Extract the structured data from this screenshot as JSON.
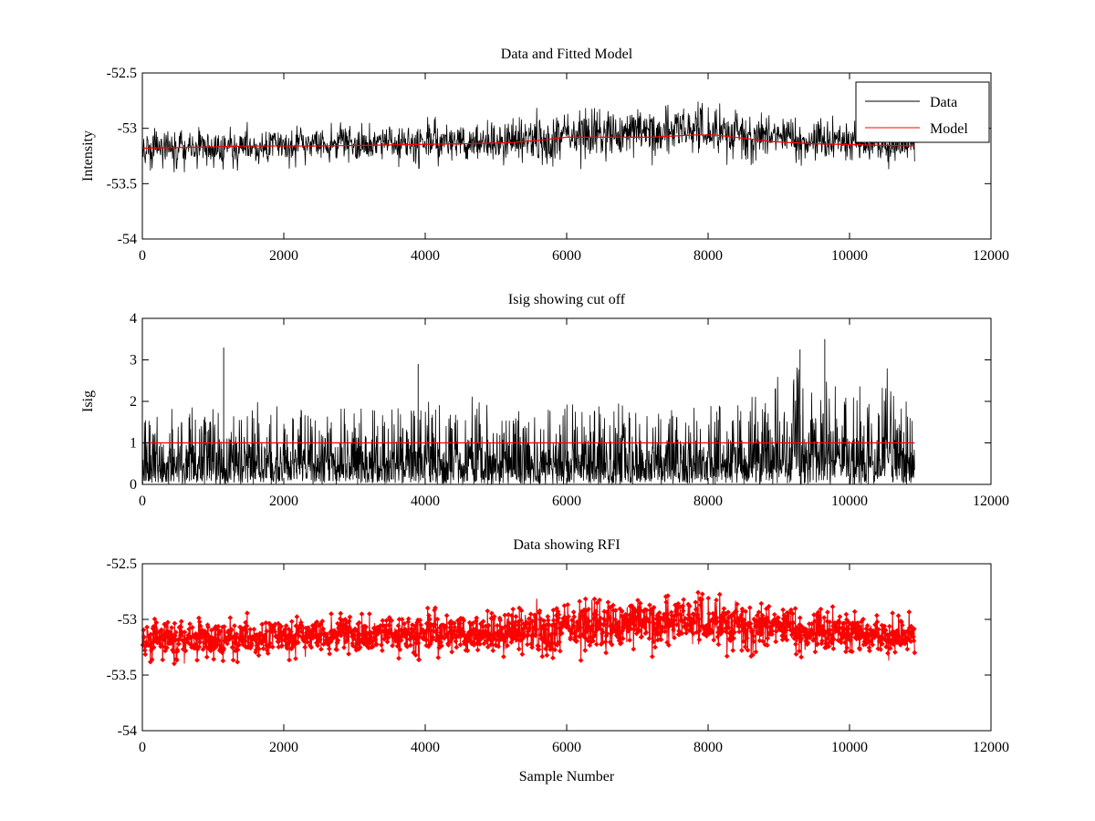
{
  "figure": {
    "background": "#ffffff"
  },
  "chart_data": [
    {
      "type": "line",
      "title": "Data and Fitted Model",
      "xlabel": "",
      "ylabel": "Intensity",
      "xlim": [
        0,
        12000
      ],
      "ylim": [
        -54,
        -52.5
      ],
      "xticks": [
        0,
        2000,
        4000,
        6000,
        8000,
        10000,
        12000
      ],
      "xtick_labels": [
        "0",
        "2000",
        "4000",
        "6000",
        "8000",
        "10000",
        "12000"
      ],
      "yticks": [
        -54,
        -53.5,
        -53,
        -52.5
      ],
      "ytick_labels": [
        "-54",
        "-53.5",
        "-53",
        "-52.5"
      ],
      "grid": false,
      "legend": {
        "position": "top-right",
        "entries": [
          "Data",
          "Model"
        ]
      },
      "series": [
        {
          "name": "Data",
          "color": "#000000",
          "kind": "noisy-line",
          "x_range": [
            0,
            10920
          ],
          "center": {
            "x": [
              0,
              1000,
              2000,
              3000,
              4000,
              5000,
              5500,
              6000,
              7000,
              8000,
              8500,
              9000,
              10000,
              10920
            ],
            "y": [
              -53.18,
              -53.17,
              -53.15,
              -53.14,
              -53.13,
              -53.12,
              -53.1,
              -53.06,
              -53.05,
              -53.03,
              -53.05,
              -53.09,
              -53.13,
              -53.16
            ]
          },
          "spread": {
            "x": [
              0,
              5000,
              6000,
              9000,
              10920
            ],
            "y": [
              0.17,
              0.18,
              0.24,
              0.22,
              0.17
            ]
          }
        },
        {
          "name": "Model",
          "color": "#ff0000",
          "kind": "line",
          "x": [
            0,
            800,
            1500,
            2500,
            3500,
            4500,
            5200,
            5600,
            6000,
            6600,
            7200,
            7800,
            8100,
            8500,
            8900,
            9500,
            10200,
            10920
          ],
          "y": [
            -53.18,
            -53.17,
            -53.16,
            -53.16,
            -53.15,
            -53.14,
            -53.13,
            -53.11,
            -53.08,
            -53.08,
            -53.08,
            -53.06,
            -53.06,
            -53.09,
            -53.12,
            -53.14,
            -53.15,
            -53.16
          ]
        }
      ]
    },
    {
      "type": "line",
      "title": "Isig showing cut off",
      "xlabel": "",
      "ylabel": "Isig",
      "xlim": [
        0,
        12000
      ],
      "ylim": [
        0,
        4
      ],
      "xticks": [
        0,
        2000,
        4000,
        6000,
        8000,
        10000,
        12000
      ],
      "xtick_labels": [
        "0",
        "2000",
        "4000",
        "6000",
        "8000",
        "10000",
        "12000"
      ],
      "yticks": [
        0,
        1,
        2,
        3,
        4
      ],
      "ytick_labels": [
        "0",
        "1",
        "2",
        "3",
        "4"
      ],
      "grid": false,
      "series": [
        {
          "color": "#000000",
          "kind": "noisy-abs",
          "x_range": [
            0,
            10920
          ],
          "typical_max": {
            "x": [
              0,
              5000,
              8000,
              9000,
              9600,
              10920
            ],
            "y": [
              1.6,
              1.7,
              1.7,
              2.3,
              2.6,
              1.8
            ]
          },
          "spikes": [
            {
              "x": 1150,
              "y": 3.3
            },
            {
              "x": 9650,
              "y": 3.5
            },
            {
              "x": 9300,
              "y": 3.25
            },
            {
              "x": 3900,
              "y": 2.9
            }
          ]
        },
        {
          "name": "cut off",
          "color": "#ff0000",
          "kind": "line",
          "x": [
            0,
            10920
          ],
          "y": [
            1,
            1
          ]
        }
      ]
    },
    {
      "type": "scatter",
      "title": "Data showing RFI",
      "xlabel": "Sample Number",
      "ylabel": "",
      "xlim": [
        0,
        12000
      ],
      "ylim": [
        -54,
        -52.5
      ],
      "xticks": [
        0,
        2000,
        4000,
        6000,
        8000,
        10000,
        12000
      ],
      "xtick_labels": [
        "0",
        "2000",
        "4000",
        "6000",
        "8000",
        "10000",
        "12000"
      ],
      "yticks": [
        -54,
        -53.5,
        -53,
        -52.5
      ],
      "ytick_labels": [
        "-54",
        "-53.5",
        "-53",
        "-52.5"
      ],
      "grid": false,
      "series": [
        {
          "color": "#000000",
          "kind": "noisy-line",
          "x_range": [
            0,
            10920
          ],
          "center": {
            "x": [
              0,
              1000,
              2000,
              3000,
              4000,
              5000,
              5500,
              6000,
              7000,
              8000,
              8500,
              9000,
              10000,
              10920
            ],
            "y": [
              -53.18,
              -53.17,
              -53.15,
              -53.14,
              -53.13,
              -53.12,
              -53.1,
              -53.06,
              -53.05,
              -53.03,
              -53.05,
              -53.09,
              -53.13,
              -53.16
            ]
          },
          "spread": {
            "x": [
              0,
              5000,
              6000,
              9000,
              10920
            ],
            "y": [
              0.17,
              0.18,
              0.24,
              0.22,
              0.17
            ]
          }
        },
        {
          "name": "RFI",
          "color": "#ff0000",
          "kind": "flagged-points",
          "marker": "diamond",
          "note_ref": "points with Isig above cut off"
        }
      ]
    }
  ]
}
